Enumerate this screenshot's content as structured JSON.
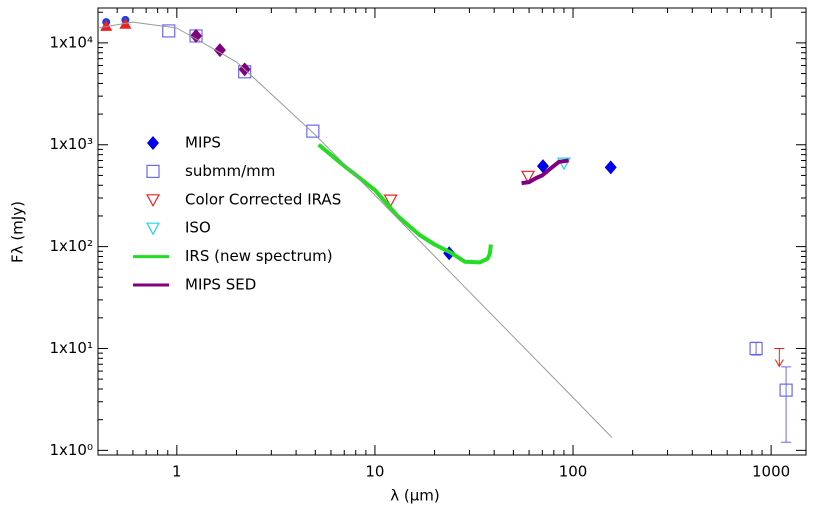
{
  "chart_data": {
    "type": "scatter",
    "xlabel": "λ (μm)",
    "ylabel": "Fλ (mJy)",
    "xscale": "log",
    "yscale": "log",
    "xlim": [
      0.4,
      1500
    ],
    "ylim": [
      0.9,
      22000
    ],
    "xticks": [
      1,
      10,
      100,
      1000
    ],
    "yticks": [
      {
        "value": 1,
        "label": "1x10⁰"
      },
      {
        "value": 10,
        "label": "1x10¹"
      },
      {
        "value": 100,
        "label": "1x10²"
      },
      {
        "value": 1000,
        "label": "1x10³"
      },
      {
        "value": 10000,
        "label": "1x10⁴"
      }
    ],
    "legend": "upper left",
    "series": [
      {
        "name": "MIPS",
        "color": "#0000ee",
        "marker": "diamond",
        "x": [
          23.7,
          70.5,
          155
        ],
        "values": [
          86,
          617,
          600
        ]
      },
      {
        "name": "submm/mm",
        "color": "#6a6aee",
        "marker": "square",
        "x": [
          0.91,
          1.25,
          2.2,
          4.86,
          840,
          1190
        ],
        "values": [
          13100,
          11700,
          5200,
          1360,
          10,
          3.9
        ],
        "err_low": [
          null,
          null,
          null,
          null,
          8.6,
          1.2
        ],
        "err_high": [
          null,
          null,
          null,
          null,
          11.5,
          6.6
        ]
      },
      {
        "name": "Color Corrected IRAS",
        "color": "#ee2020",
        "marker": "triangle-down",
        "x": [
          12,
          59.3
        ],
        "values": [
          286,
          490
        ]
      },
      {
        "name": "ISO",
        "color": "#20d8e8",
        "marker": "triangle-down",
        "x": [
          90
        ],
        "values": [
          660
        ]
      },
      {
        "name": "IRS (new spectrum)",
        "color": "#22dd22",
        "marker": "line",
        "x": [
          5.2,
          7,
          10,
          13,
          16.8,
          20,
          24,
          28.5,
          33.8,
          37,
          38,
          38.5
        ],
        "values": [
          1000,
          620,
          359,
          200,
          130,
          105,
          88,
          71,
          70,
          76,
          85,
          105
        ]
      },
      {
        "name": "MIPS SED",
        "color": "#800080",
        "marker": "line",
        "x": [
          55,
          60,
          65,
          70,
          75,
          80,
          85,
          95
        ],
        "values": [
          420,
          430,
          470,
          500,
          560,
          620,
          680,
          700
        ]
      },
      {
        "color": "#1a3ee8",
        "marker": "circle",
        "x": [
          0.44,
          0.55
        ],
        "values": [
          16000,
          16800
        ]
      },
      {
        "color": "#ee2020",
        "marker": "triangle-up",
        "x": [
          0.44,
          0.55
        ],
        "values": [
          14700,
          15400
        ]
      },
      {
        "color": "#800080",
        "marker": "diamond",
        "x": [
          1.25,
          1.65,
          2.2
        ],
        "values": [
          11700,
          8500,
          5500
        ]
      },
      {
        "color": "#ee2020",
        "marker": "arrow-down",
        "x": [
          1100
        ],
        "values": [
          10
        ]
      },
      {
        "color": "#999999",
        "marker": "line",
        "x": [
          0.4,
          0.6,
          1,
          2,
          5,
          10,
          30,
          100,
          157
        ],
        "values": [
          14000,
          16000,
          14000,
          6500,
          1250,
          320,
          36,
          3.3,
          1.34
        ]
      }
    ]
  }
}
